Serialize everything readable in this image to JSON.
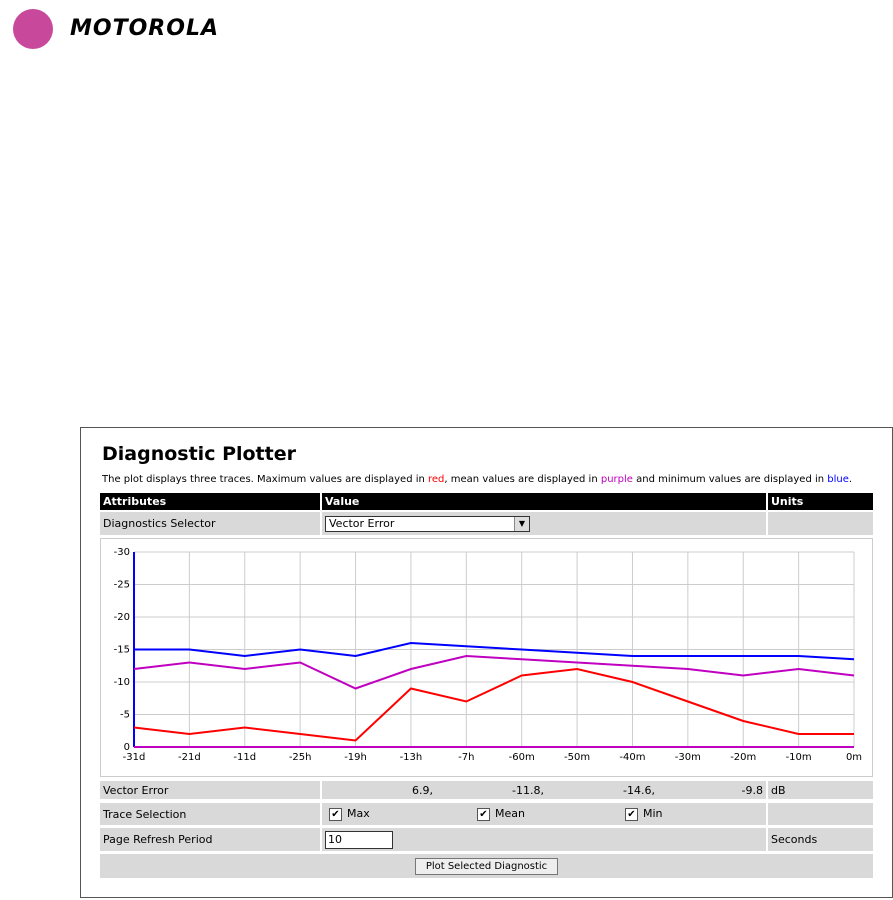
{
  "header": {
    "brand": "MOTOROLA"
  },
  "panel": {
    "title": "Diagnostic Plotter",
    "description": [
      "The plot displays three traces. Maximum values are displayed in ",
      "red",
      ", mean values are displayed in ",
      "purple",
      " and minimum values are displayed in ",
      "blue",
      "."
    ],
    "table_header": [
      "Attributes",
      "Value",
      "Units"
    ],
    "selector": {
      "label": "Diagnostics Selector",
      "value": "Vector Error"
    },
    "vector_error": {
      "label": "Vector Error",
      "values": [
        "6.9,",
        "-11.8,",
        "-14.6,",
        "-9.8"
      ],
      "unit": "dB"
    },
    "trace_selection": {
      "label": "Trace Selection"
    },
    "refresh": {
      "label": "Page Refresh Period",
      "value": "10",
      "unit": "Seconds"
    },
    "button": "Plot Selected Diagnostic"
  },
  "chart_data": {
    "type": "line",
    "categories": [
      "-31d",
      "-21d",
      "-11d",
      "-25h",
      "-19h",
      "-13h",
      "-7h",
      "-60m",
      "-50m",
      "-40m",
      "-30m",
      "-20m",
      "-10m",
      "0m"
    ],
    "ylim": [
      0,
      -30
    ],
    "yticks": [
      -30,
      -25,
      -20,
      -15,
      -10,
      -5,
      0
    ],
    "grid": true,
    "series": [
      {
        "name": "Max",
        "color": "#ff0000",
        "values": [
          -3,
          -2,
          -3,
          -2,
          -1,
          -9,
          -7,
          -11,
          -12,
          -10,
          -7,
          -4,
          -2,
          -2
        ]
      },
      {
        "name": "Mean",
        "color": "#c000c0",
        "values": [
          -12,
          -13,
          -12,
          -13,
          -9,
          -12,
          -14,
          -13.5,
          -13,
          -12.5,
          -12,
          -11,
          -12,
          -11
        ]
      },
      {
        "name": "Min",
        "color": "#0000ff",
        "values": [
          -15,
          -15,
          -14,
          -15,
          -14,
          -16,
          -15.5,
          -15,
          -14.5,
          -14,
          -14,
          -14,
          -14,
          -13.5
        ]
      }
    ]
  }
}
